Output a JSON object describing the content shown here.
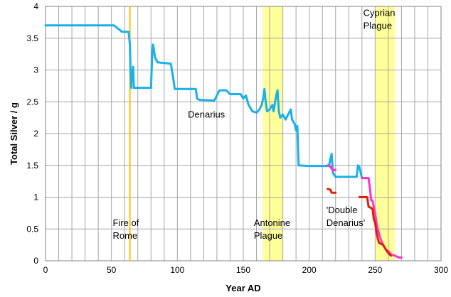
{
  "chart_data": {
    "type": "line",
    "title": "",
    "xlabel": "Year AD",
    "ylabel": "Total Silver / g",
    "xlim": [
      0,
      300
    ],
    "ylim": [
      0,
      4
    ],
    "x_ticks": [
      0,
      50,
      100,
      150,
      200,
      250,
      300
    ],
    "y_ticks": [
      0,
      0.5,
      1,
      1.5,
      2,
      2.5,
      3,
      3.5,
      4
    ],
    "grid": true,
    "legend": "none",
    "colors": {
      "denarius": "#1ab0e8",
      "denarius_transition": "#5fc8a8",
      "double_denarius_magenta": "#ff33cc",
      "double_denarius_red": "#dd2200",
      "fire_line": "#ffc000",
      "plague_band": "#ffff99"
    },
    "vertical_lines": [
      {
        "x": 64,
        "label": "Fire of Rome"
      }
    ],
    "shaded_bands": [
      {
        "x_start": 165,
        "x_end": 180,
        "label": "Antonine Plague"
      },
      {
        "x_start": 250,
        "x_end": 265,
        "label": "Cyprian Plague"
      }
    ],
    "annotations": [
      {
        "text": "Denarius",
        "x": 108,
        "y": 2.25
      },
      {
        "text_lines": [
          "Fire of",
          "Rome"
        ],
        "x": 51,
        "y": 0.55
      },
      {
        "text_lines": [
          "Antonine",
          "Plague"
        ],
        "x": 158,
        "y": 0.55
      },
      {
        "text_lines": [
          "'Double",
          "Denarius'"
        ],
        "x": 213,
        "y": 0.75
      },
      {
        "text_lines": [
          "Cyprian",
          "Plague"
        ],
        "x": 241,
        "y": 3.85
      }
    ],
    "series": [
      {
        "key": "denarius",
        "points": [
          [
            0,
            3.7
          ],
          [
            52,
            3.7
          ],
          [
            55,
            3.65
          ],
          [
            58,
            3.6
          ],
          [
            63,
            3.6
          ],
          [
            64,
            3.4
          ],
          [
            64.5,
            3.0
          ],
          [
            65,
            2.72
          ],
          [
            65.5,
            3.0
          ],
          [
            66,
            2.85
          ],
          [
            66.5,
            3.05
          ],
          [
            67,
            2.72
          ],
          [
            80,
            2.72
          ],
          [
            81,
            3.3
          ],
          [
            81.5,
            3.4
          ],
          [
            82,
            3.35
          ],
          [
            83,
            3.2
          ],
          [
            85,
            3.12
          ],
          [
            95,
            3.1
          ],
          [
            97,
            2.85
          ],
          [
            98,
            2.7
          ],
          [
            114,
            2.7
          ],
          [
            115,
            2.55
          ],
          [
            117,
            2.53
          ],
          [
            128,
            2.52
          ],
          [
            130,
            2.6
          ],
          [
            132,
            2.68
          ],
          [
            137,
            2.68
          ],
          [
            140,
            2.62
          ],
          [
            148,
            2.62
          ],
          [
            150,
            2.55
          ],
          [
            152,
            2.6
          ],
          [
            154,
            2.45
          ],
          [
            157,
            2.35
          ],
          [
            160,
            2.33
          ],
          [
            162,
            2.37
          ],
          [
            164,
            2.45
          ],
          [
            165,
            2.55
          ],
          [
            166,
            2.7
          ],
          [
            167,
            2.5
          ],
          [
            168,
            2.35
          ],
          [
            170,
            2.38
          ],
          [
            172,
            2.45
          ],
          [
            173,
            2.35
          ],
          [
            175,
            2.6
          ],
          [
            176,
            2.68
          ],
          [
            177,
            2.35
          ],
          [
            178,
            2.25
          ],
          [
            180,
            2.3
          ],
          [
            182,
            2.22
          ],
          [
            184,
            2.3
          ],
          [
            186,
            2.38
          ],
          [
            187,
            2.22
          ],
          [
            189,
            2.15
          ],
          [
            190,
            2.05
          ],
          [
            191,
            2.12
          ],
          [
            192,
            1.5
          ],
          [
            200,
            1.49
          ],
          [
            215,
            1.49
          ],
          [
            216,
            1.6
          ],
          [
            217,
            1.68
          ],
          [
            218,
            1.38
          ],
          [
            220,
            1.32
          ],
          [
            236,
            1.32
          ],
          [
            237,
            1.5
          ],
          [
            238,
            1.48
          ],
          [
            240,
            1.3
          ],
          [
            245,
            1.3
          ]
        ]
      },
      {
        "key": "double_denarius_magenta",
        "points": [
          [
            214,
            1.5
          ],
          [
            216,
            1.48
          ],
          [
            218,
            1.42
          ],
          [
            220,
            1.43
          ]
        ]
      },
      {
        "key": "double_denarius_magenta",
        "points": [
          [
            240,
            1.3
          ],
          [
            245,
            1.3
          ],
          [
            246,
            1.15
          ],
          [
            247,
            0.95
          ],
          [
            248,
            0.95
          ],
          [
            250,
            0.75
          ],
          [
            251,
            0.6
          ],
          [
            252,
            0.5
          ],
          [
            254,
            0.35
          ],
          [
            256,
            0.25
          ],
          [
            258,
            0.18
          ],
          [
            260,
            0.15
          ],
          [
            262,
            0.1
          ],
          [
            265,
            0.08
          ],
          [
            268,
            0.05
          ],
          [
            270,
            0.05
          ]
        ]
      },
      {
        "key": "double_denarius_red",
        "points": [
          [
            214,
            1.13
          ],
          [
            216,
            1.12
          ],
          [
            217,
            1.07
          ],
          [
            220,
            1.07
          ]
        ]
      },
      {
        "key": "double_denarius_red",
        "points": [
          [
            238,
            1.0
          ],
          [
            244,
            1.0
          ],
          [
            245,
            0.85
          ],
          [
            248,
            0.82
          ],
          [
            249,
            0.65
          ],
          [
            250,
            0.6
          ],
          [
            251,
            0.45
          ],
          [
            252,
            0.35
          ],
          [
            253,
            0.28
          ],
          [
            256,
            0.25
          ],
          [
            258,
            0.18
          ],
          [
            260,
            0.12
          ],
          [
            262,
            0.08
          ]
        ]
      }
    ]
  }
}
